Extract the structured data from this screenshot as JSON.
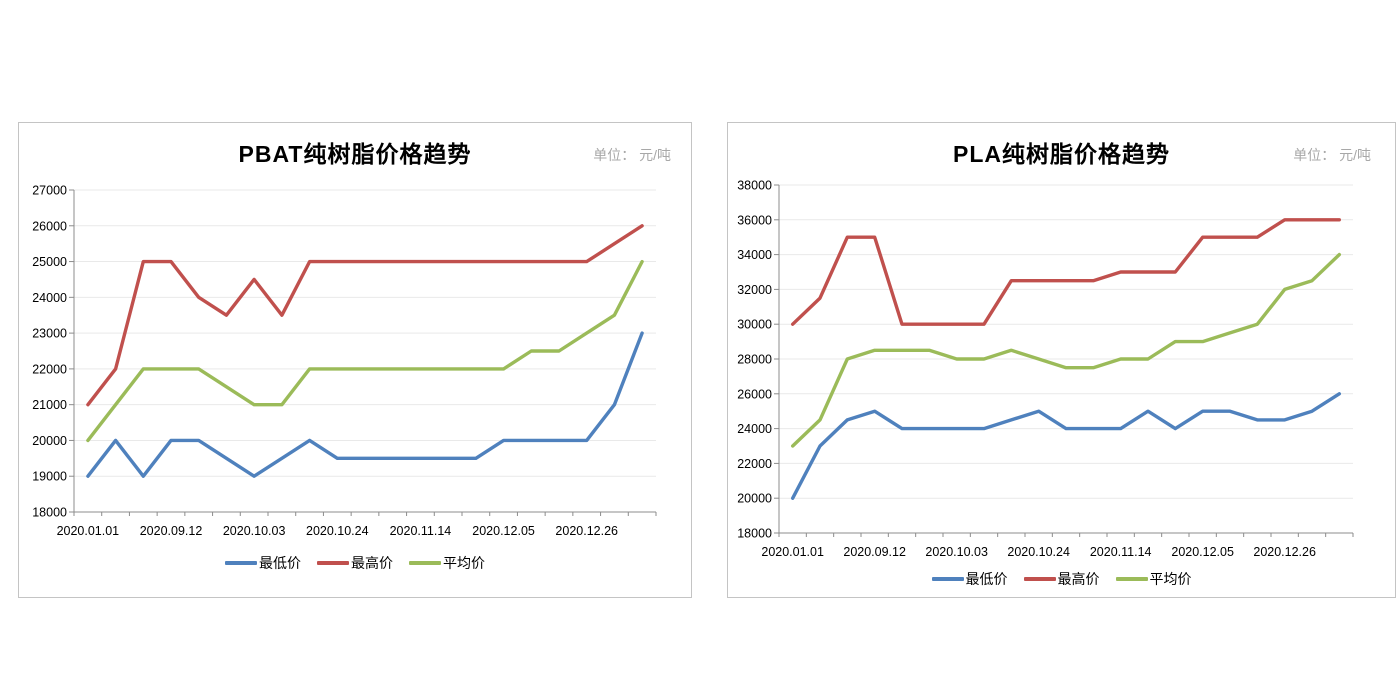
{
  "chart_data": [
    {
      "type": "line",
      "title": "PBAT纯树脂价格趋势",
      "unit_label": "单位： 元/吨",
      "x_tick_labels": [
        "2020.01.01",
        "2020.09.12",
        "2020.10.03",
        "2020.10.24",
        "2020.11.14",
        "2020.12.05",
        "2020.12.26"
      ],
      "label_every": 3,
      "n_points": 21,
      "ylim": [
        18000,
        27000
      ],
      "y_step": 1000,
      "grid": true,
      "legend_position": "bottom",
      "series": [
        {
          "name": "最低价",
          "color": "#4F81BD",
          "values": [
            19000,
            20000,
            19000,
            20000,
            20000,
            19500,
            19000,
            19500,
            20000,
            19500,
            19500,
            19500,
            19500,
            19500,
            19500,
            20000,
            20000,
            20000,
            20000,
            21000,
            23000
          ]
        },
        {
          "name": "最高价",
          "color": "#C0504D",
          "values": [
            21000,
            22000,
            25000,
            25000,
            24000,
            23500,
            24500,
            23500,
            25000,
            25000,
            25000,
            25000,
            25000,
            25000,
            25000,
            25000,
            25000,
            25000,
            25000,
            25500,
            26000
          ]
        },
        {
          "name": "平均价",
          "color": "#9BBB59",
          "values": [
            20000,
            21000,
            22000,
            22000,
            22000,
            21500,
            21000,
            21000,
            22000,
            22000,
            22000,
            22000,
            22000,
            22000,
            22000,
            22000,
            22500,
            22500,
            23000,
            23500,
            25000
          ]
        }
      ]
    },
    {
      "type": "line",
      "title": "PLA纯树脂价格趋势",
      "unit_label": "单位： 元/吨",
      "x_tick_labels": [
        "2020.01.01",
        "2020.09.12",
        "2020.10.03",
        "2020.10.24",
        "2020.11.14",
        "2020.12.05",
        "2020.12.26"
      ],
      "label_every": 3,
      "n_points": 21,
      "ylim": [
        18000,
        38000
      ],
      "y_step": 2000,
      "grid": true,
      "legend_position": "bottom",
      "series": [
        {
          "name": "最低价",
          "color": "#4F81BD",
          "values": [
            20000,
            23000,
            24500,
            25000,
            24000,
            24000,
            24000,
            24000,
            24500,
            25000,
            24000,
            24000,
            24000,
            25000,
            24000,
            25000,
            25000,
            24500,
            24500,
            25000,
            26000
          ]
        },
        {
          "name": "最高价",
          "color": "#C0504D",
          "values": [
            30000,
            31500,
            35000,
            35000,
            30000,
            30000,
            30000,
            30000,
            32500,
            32500,
            32500,
            32500,
            33000,
            33000,
            33000,
            35000,
            35000,
            35000,
            36000,
            36000,
            36000
          ]
        },
        {
          "name": "平均价",
          "color": "#9BBB59",
          "values": [
            23000,
            24500,
            28000,
            28500,
            28500,
            28500,
            28000,
            28000,
            28500,
            28000,
            27500,
            27500,
            28000,
            28000,
            29000,
            29000,
            29500,
            30000,
            32000,
            32500,
            34000
          ]
        }
      ]
    }
  ],
  "style_colors": {
    "grid_line": "#e9e9e9",
    "axis_line": "#8c8c8c",
    "tick_label": "#000000"
  }
}
